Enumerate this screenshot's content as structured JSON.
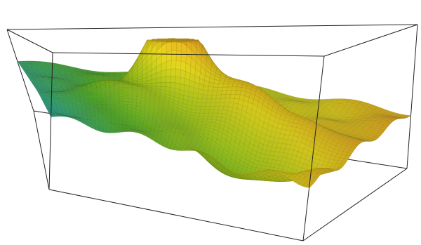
{
  "chart_data": {
    "type": "surface",
    "title": "",
    "xlabel": "",
    "ylabel": "",
    "zlabel": "",
    "axes_visible": false,
    "grid": false,
    "legend": "none",
    "bounding_box": true,
    "colormap": [
      "#c81e1e",
      "#e85a1a",
      "#f5a623",
      "#f2e21f",
      "#b6dc1e",
      "#5cc22e",
      "#2fb8a6",
      "#3a86c8",
      "#1f3f9a"
    ],
    "surface": {
      "x_range": [
        0,
        1
      ],
      "y_range": [
        0,
        1
      ],
      "z_range": [
        0,
        1
      ],
      "peaks": [
        {
          "x": 0.42,
          "y": 0.62,
          "height": 0.72,
          "width": 0.075
        },
        {
          "x": 0.62,
          "y": 0.52,
          "height": 0.28,
          "width": 0.09
        },
        {
          "x": 0.28,
          "y": 0.42,
          "height": 0.18,
          "width": 0.12
        },
        {
          "x": 0.84,
          "y": 0.48,
          "height": 0.12,
          "width": 0.06
        }
      ],
      "troughs": [
        {
          "x": 0.7,
          "y": 0.18,
          "depth": 0.2,
          "width": 0.1
        },
        {
          "x": 0.88,
          "y": 0.28,
          "depth": 0.12,
          "width": 0.07
        }
      ],
      "base_tilt": {
        "x": -0.22,
        "y": 0.08
      },
      "base_level": 0.46
    }
  }
}
